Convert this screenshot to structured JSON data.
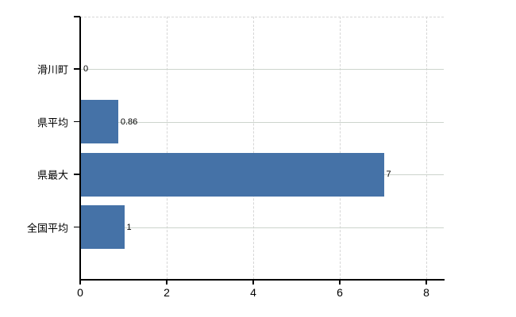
{
  "chart_data": {
    "type": "bar",
    "orientation": "horizontal",
    "title": "",
    "xlabel": "",
    "ylabel": "",
    "categories": [
      "滑川町",
      "県平均",
      "県最大",
      "全国平均"
    ],
    "values": [
      0,
      0.86,
      7,
      1
    ],
    "data_labels": [
      "0",
      "0.86",
      "7",
      "1"
    ],
    "x_tick_labels": [
      "0",
      "2",
      "4",
      "6",
      "8"
    ],
    "x_tick_values": [
      0,
      2,
      4,
      6,
      8
    ],
    "xlim": [
      0,
      8.4
    ],
    "grid": true,
    "legend_position": "none",
    "bar_color": "#4572a7",
    "axis_color": "#000000",
    "h_gridline_color": "#ccd4cc",
    "v_gridline_color": "#d6d6d6",
    "plot_border_color": "#d6d6d6",
    "background_color": "#ffffff",
    "label_color": "#000000"
  }
}
